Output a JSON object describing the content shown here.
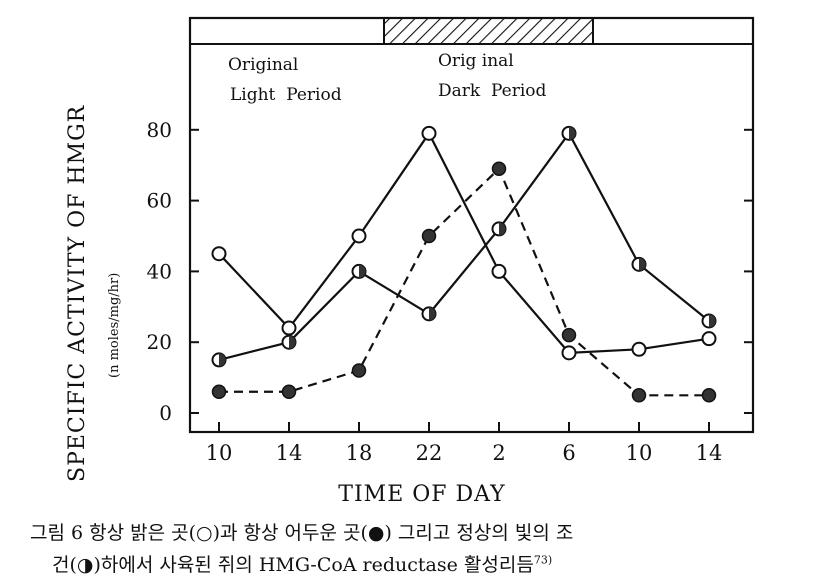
{
  "chart_data": {
    "type": "line",
    "title": "",
    "xlabel": "TIME OF DAY",
    "ylabel": "SPECIFIC ACTIVITY OF HMGR",
    "ylabel_units": "(n moles/mg/hr)",
    "categories": [
      "10",
      "14",
      "18",
      "22",
      "2",
      "6",
      "10",
      "14"
    ],
    "yticks": [
      "0",
      "20",
      "40",
      "60",
      "80"
    ],
    "ylim": [
      0,
      85
    ],
    "grid": false,
    "light_dark_bar": {
      "segments": [
        {
          "kind": "light",
          "from": "8",
          "to": "20"
        },
        {
          "kind": "dark",
          "from": "20",
          "to": "8"
        },
        {
          "kind": "light",
          "from": "8",
          "to": "16"
        }
      ],
      "labels": [
        {
          "line1": "Original",
          "line2": "Light  Period"
        },
        {
          "line1": "Orig inal",
          "line2": "Dark  Period"
        }
      ]
    },
    "series": [
      {
        "marker": "open",
        "style": "solid",
        "values": [
          45,
          24,
          50,
          79,
          40,
          17,
          18,
          21
        ]
      },
      {
        "marker": "half",
        "style": "solid",
        "values": [
          15,
          20,
          40,
          28,
          52,
          79,
          42,
          26
        ]
      },
      {
        "marker": "filled",
        "style": "dashed",
        "values": [
          6,
          6,
          12,
          50,
          69,
          22,
          5,
          5
        ]
      }
    ],
    "colors": {
      "ink": "#111111",
      "background": "#ffffff"
    }
  },
  "caption": {
    "line1": "그림 6  항상 밝은 곳(○)과 항상 어두운 곳(●) 그리고 정상의 빛의 조",
    "line2": "건(◑)하에서 사육된 쥐의 HMG-CoA reductase 활성리듬",
    "ref": "73)"
  }
}
